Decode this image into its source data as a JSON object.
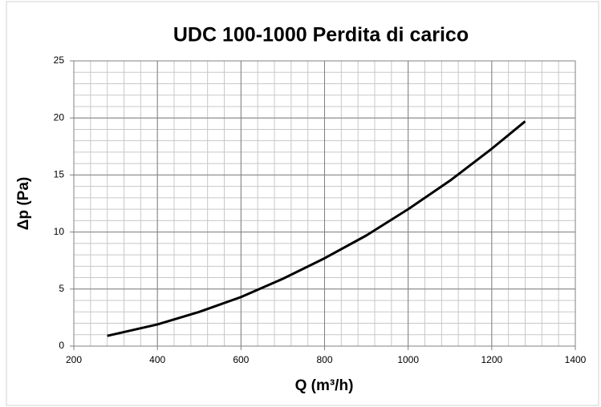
{
  "chart_data": {
    "type": "line",
    "title": "UDC 100-1000 Perdita di carico",
    "xlabel": "Q (m³/h)",
    "ylabel": "Δp (Pa)",
    "x": [
      280,
      400,
      500,
      600,
      700,
      800,
      900,
      1000,
      1100,
      1200,
      1280
    ],
    "series": [
      {
        "name": "UDC 100-1000",
        "color": "#000000",
        "values": [
          0.9,
          1.9,
          3.0,
          4.3,
          5.9,
          7.7,
          9.7,
          12.0,
          14.5,
          17.3,
          19.7
        ]
      }
    ],
    "xlim": [
      200,
      1400
    ],
    "xticks": [
      200,
      400,
      600,
      800,
      1000,
      1200,
      1400
    ],
    "ylim": [
      0,
      25
    ],
    "yticks": [
      0,
      5,
      10,
      15,
      20,
      25
    ],
    "grid": true,
    "minor_grid": {
      "x": 40,
      "y": 1
    }
  }
}
